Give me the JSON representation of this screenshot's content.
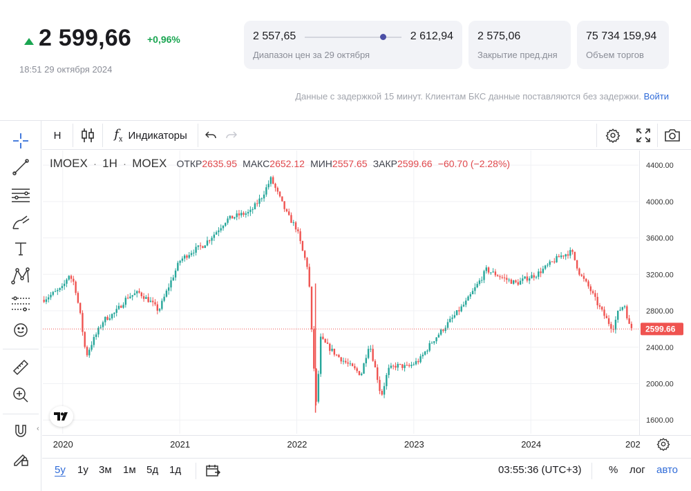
{
  "header": {
    "last_price": "2 599,66",
    "change_pct": "+0,96%",
    "timestamp": "18:51 29 октября 2024",
    "range_low": "2 557,65",
    "range_high": "2 612,94",
    "range_label": "Диапазон цен за 29 октября",
    "prev_close_value": "2 575,06",
    "prev_close_label": "Закрытие пред.дня",
    "volume_value": "75 734 159,94",
    "volume_label": "Объем торгов",
    "range_position": 0.81,
    "delay_note": "Данные с задержкой 15 минут. Клиентам БКС данные поставляются без задержки.",
    "login_link": "Войти",
    "accent_color": "#1aa551",
    "link_color": "#2f6bd8"
  },
  "toolbar": {
    "interval": "H",
    "indicators_label": "Индикаторы"
  },
  "legend": {
    "symbol": "IMOEX",
    "interval": "1H",
    "exchange": "MOEX",
    "open_label": "ОТКР",
    "open_value": "2635.95",
    "high_label": "МАКС",
    "high_value": "2652.12",
    "low_label": "МИН",
    "low_value": "2557.65",
    "close_label": "ЗАКР",
    "close_value": "2599.66",
    "change": "−60.70 (−2.28%)"
  },
  "range_buttons": [
    "5y",
    "1y",
    "3м",
    "1м",
    "5д",
    "1д"
  ],
  "active_range": "5y",
  "bottom": {
    "clock": "03:55:36 (UTC+3)",
    "percent": "%",
    "log": "лог",
    "auto": "авто"
  },
  "chart_data": {
    "type": "line",
    "title": "",
    "x_ticks": [
      "2020",
      "2021",
      "2022",
      "2023",
      "2024",
      "202"
    ],
    "y_ticks": [
      "4400.00",
      "4000.00",
      "3600.00",
      "3200.00",
      "2800.00",
      "2400.00",
      "2000.00",
      "1600.00"
    ],
    "ylim": [
      1450,
      4560
    ],
    "xlim": [
      2019.83,
      2024.92
    ],
    "current_value_label": "2599.66",
    "current_value": 2599.66,
    "up_color": "#26a69a",
    "down_color": "#ef5350",
    "series": [
      {
        "points": [
          [
            2019.83,
            2920
          ],
          [
            2019.92,
            2990
          ],
          [
            2020.0,
            3050
          ],
          [
            2020.05,
            3200
          ],
          [
            2020.1,
            3100
          ],
          [
            2020.15,
            2750
          ],
          [
            2020.2,
            2300
          ],
          [
            2020.25,
            2450
          ],
          [
            2020.35,
            2700
          ],
          [
            2020.45,
            2780
          ],
          [
            2020.55,
            2950
          ],
          [
            2020.65,
            3000
          ],
          [
            2020.75,
            2900
          ],
          [
            2020.82,
            2800
          ],
          [
            2020.9,
            3050
          ],
          [
            2021.0,
            3350
          ],
          [
            2021.1,
            3450
          ],
          [
            2021.2,
            3520
          ],
          [
            2021.3,
            3650
          ],
          [
            2021.4,
            3800
          ],
          [
            2021.5,
            3850
          ],
          [
            2021.6,
            3880
          ],
          [
            2021.7,
            4050
          ],
          [
            2021.78,
            4250
          ],
          [
            2021.85,
            4050
          ],
          [
            2021.92,
            3850
          ],
          [
            2022.0,
            3700
          ],
          [
            2022.05,
            3450
          ],
          [
            2022.1,
            3250
          ],
          [
            2022.13,
            2500
          ],
          [
            2022.17,
            1700
          ],
          [
            2022.2,
            2500
          ],
          [
            2022.27,
            2400
          ],
          [
            2022.35,
            2300
          ],
          [
            2022.45,
            2200
          ],
          [
            2022.55,
            2100
          ],
          [
            2022.62,
            2450
          ],
          [
            2022.7,
            2000
          ],
          [
            2022.72,
            1850
          ],
          [
            2022.78,
            2150
          ],
          [
            2022.85,
            2200
          ],
          [
            2022.95,
            2180
          ],
          [
            2023.05,
            2260
          ],
          [
            2023.15,
            2450
          ],
          [
            2023.25,
            2600
          ],
          [
            2023.35,
            2750
          ],
          [
            2023.45,
            2900
          ],
          [
            2023.55,
            3100
          ],
          [
            2023.62,
            3250
          ],
          [
            2023.7,
            3200
          ],
          [
            2023.78,
            3150
          ],
          [
            2023.88,
            3100
          ],
          [
            2023.95,
            3150
          ],
          [
            2024.05,
            3200
          ],
          [
            2024.15,
            3300
          ],
          [
            2024.25,
            3400
          ],
          [
            2024.35,
            3450
          ],
          [
            2024.42,
            3200
          ],
          [
            2024.5,
            3050
          ],
          [
            2024.58,
            2850
          ],
          [
            2024.65,
            2700
          ],
          [
            2024.7,
            2600
          ],
          [
            2024.75,
            2800
          ],
          [
            2024.8,
            2870
          ],
          [
            2024.84,
            2640
          ],
          [
            2024.87,
            2600
          ]
        ]
      }
    ]
  }
}
